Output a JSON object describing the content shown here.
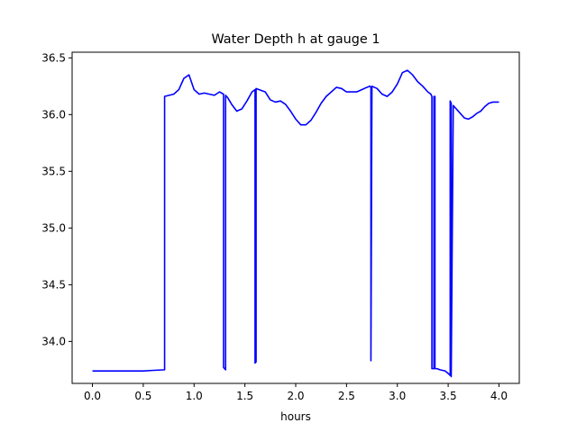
{
  "chart_data": {
    "type": "line",
    "title": "Water Depth h at gauge 1",
    "xlabel": "hours",
    "ylabel": "",
    "xlim": [
      -0.2,
      4.2
    ],
    "ylim": [
      33.63,
      36.55
    ],
    "xticks": [
      0.0,
      0.5,
      1.0,
      1.5,
      2.0,
      2.5,
      3.0,
      3.5,
      4.0
    ],
    "xtick_labels": [
      "0.0",
      "0.5",
      "1.0",
      "1.5",
      "2.0",
      "2.5",
      "3.0",
      "3.5",
      "4.0"
    ],
    "yticks": [
      34.0,
      34.5,
      35.0,
      35.5,
      36.0,
      36.5
    ],
    "ytick_labels": [
      "34.0",
      "34.5",
      "35.0",
      "35.5",
      "36.0",
      "36.5"
    ],
    "grid": false,
    "legend": "none",
    "series": [
      {
        "color": "#0000ff",
        "x": [
          0.0,
          0.25,
          0.5,
          0.6,
          0.71,
          0.71,
          0.8,
          0.85,
          0.9,
          0.95,
          1.0,
          1.05,
          1.1,
          1.15,
          1.2,
          1.25,
          1.29,
          1.29,
          1.31,
          1.31,
          1.33,
          1.37,
          1.42,
          1.47,
          1.52,
          1.57,
          1.6,
          1.6,
          1.61,
          1.61,
          1.64,
          1.7,
          1.75,
          1.8,
          1.85,
          1.9,
          1.95,
          2.0,
          2.05,
          2.1,
          2.15,
          2.2,
          2.25,
          2.3,
          2.35,
          2.4,
          2.45,
          2.5,
          2.55,
          2.6,
          2.65,
          2.7,
          2.73,
          2.74,
          2.74,
          2.75,
          2.8,
          2.85,
          2.9,
          2.95,
          3.0,
          3.05,
          3.1,
          3.15,
          3.2,
          3.25,
          3.3,
          3.33,
          3.34,
          3.34,
          3.36,
          3.36,
          3.37,
          3.37,
          3.38,
          3.39,
          3.42,
          3.47,
          3.51,
          3.52,
          3.52,
          3.53,
          3.53,
          3.55,
          3.58,
          3.62,
          3.66,
          3.7,
          3.74,
          3.78,
          3.82,
          3.86,
          3.9,
          3.94,
          3.98,
          4.0
        ],
        "y": [
          33.74,
          33.74,
          33.74,
          33.745,
          33.75,
          36.16,
          36.18,
          36.22,
          36.32,
          36.35,
          36.22,
          36.18,
          36.19,
          36.18,
          36.17,
          36.2,
          36.18,
          33.77,
          33.75,
          36.17,
          36.15,
          36.09,
          36.03,
          36.05,
          36.12,
          36.2,
          36.22,
          33.81,
          33.82,
          36.23,
          36.22,
          36.2,
          36.13,
          36.11,
          36.12,
          36.09,
          36.03,
          35.96,
          35.91,
          35.91,
          35.95,
          36.02,
          36.1,
          36.16,
          36.2,
          36.24,
          36.23,
          36.2,
          36.2,
          36.2,
          36.22,
          36.24,
          36.25,
          36.24,
          33.83,
          36.25,
          36.23,
          36.18,
          36.16,
          36.2,
          36.27,
          36.37,
          36.39,
          36.35,
          36.29,
          36.25,
          36.2,
          36.18,
          36.16,
          33.76,
          33.76,
          36.16,
          36.16,
          33.76,
          33.76,
          33.76,
          33.75,
          33.74,
          33.71,
          33.7,
          36.12,
          36.1,
          33.69,
          36.08,
          36.05,
          36.01,
          35.97,
          35.96,
          35.98,
          36.01,
          36.03,
          36.07,
          36.1,
          36.11,
          36.11,
          36.11
        ]
      }
    ]
  }
}
